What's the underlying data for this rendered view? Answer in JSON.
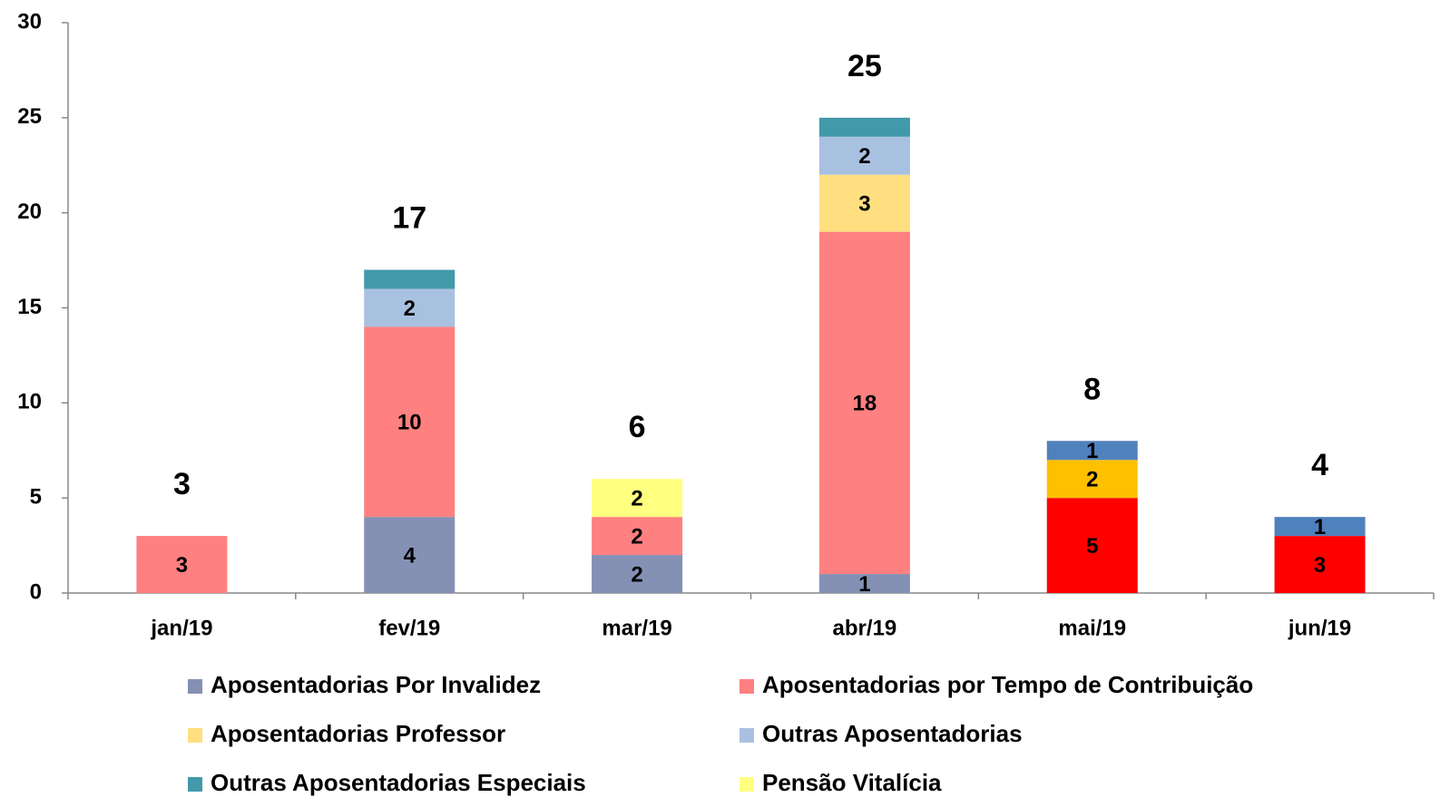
{
  "chart_data": {
    "type": "stacked_bar",
    "categories": [
      "jan/19",
      "fev/19",
      "mar/19",
      "abr/19",
      "mai/19",
      "jun/19"
    ],
    "series": [
      {
        "name": "Aposentadorias Por Invalidez",
        "color": "#8491b4",
        "values": [
          null,
          4,
          2,
          1,
          null,
          null
        ],
        "show_labels": true
      },
      {
        "name": "Aposentadorias por Tempo de Contribuição",
        "color": "#ff8080",
        "values": [
          3,
          10,
          2,
          18,
          null,
          null
        ],
        "show_labels": true
      },
      {
        "name": "Aposentadorias Professor",
        "color": "#ffdf80",
        "values": [
          null,
          null,
          null,
          3,
          null,
          null
        ],
        "show_labels": true
      },
      {
        "name": "Outras Aposentadorias",
        "color": "#a9c1e0",
        "values": [
          null,
          2,
          null,
          2,
          null,
          null
        ],
        "show_labels": true
      },
      {
        "name": "Outras Aposentadorias Especiais",
        "color": "#4199a9",
        "values": [
          null,
          1,
          null,
          1,
          null,
          null
        ],
        "show_labels": false
      },
      {
        "name": "Pensão Vitalícia",
        "color": "#ffff80",
        "values": [
          null,
          null,
          2,
          null,
          null,
          null
        ],
        "show_labels": true
      },
      {
        "color": "#ff0000",
        "values": [
          null,
          null,
          null,
          null,
          5,
          3
        ],
        "show_labels": true
      },
      {
        "color": "#ffc000",
        "values": [
          null,
          null,
          null,
          null,
          2,
          null
        ],
        "show_labels": true
      },
      {
        "color": "#4f81bd",
        "values": [
          null,
          null,
          null,
          null,
          1,
          1
        ],
        "show_labels": true
      }
    ],
    "totals": [
      3,
      17,
      6,
      25,
      8,
      4
    ],
    "ylim": [
      0,
      30
    ],
    "yticks": [
      0,
      5,
      10,
      15,
      20,
      25,
      30
    ]
  }
}
